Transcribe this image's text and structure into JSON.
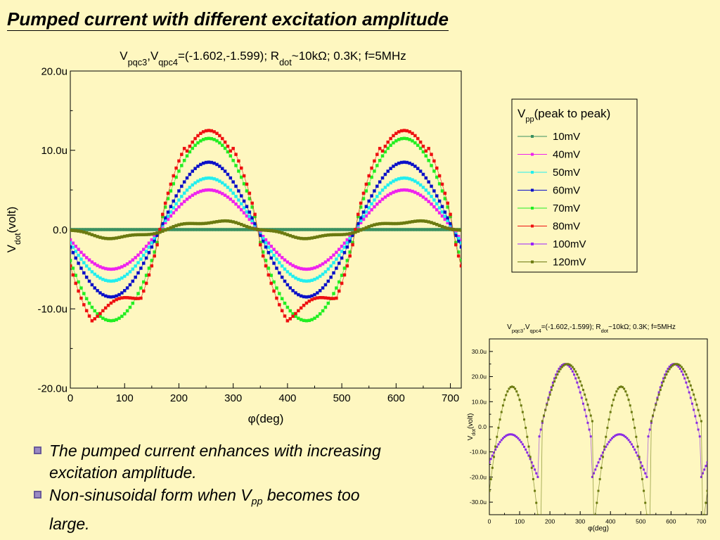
{
  "slide": {
    "title": "Pumped current with different excitation amplitude",
    "bullets": [
      {
        "text": "The pumped current enhances with increasing excitation amplitude."
      },
      {
        "pre": "Non-sinusoidal form when V",
        "sub": "pp",
        "post": " becomes too large."
      }
    ]
  },
  "chart_data": [
    {
      "id": "main",
      "type": "scatter",
      "title_parts": [
        {
          "t": "V"
        },
        {
          "t": "pqc3",
          "sub": true
        },
        {
          "t": ",V"
        },
        {
          "t": "qpc4",
          "sub": true
        },
        {
          "t": "=(-1.602,-1.599); R"
        },
        {
          "t": "dot",
          "sub": true
        },
        {
          "t": "~10kΩ; 0.3K; f=5MHz"
        }
      ],
      "xlabel": "φ(deg)",
      "ylabel_main": "V",
      "ylabel_sub": "dot",
      "ylabel_post": "(volt)",
      "xlim": [
        0,
        720
      ],
      "ylim": [
        -20,
        20
      ],
      "xticks": [
        0,
        100,
        200,
        300,
        400,
        500,
        600,
        700
      ],
      "xtick_labels": [
        "0",
        "100",
        "200",
        "300",
        "400",
        "500",
        "600",
        "700"
      ],
      "yticks": [
        -20,
        -10,
        0,
        10,
        20
      ],
      "ytick_labels": [
        "-20.0u",
        "-10.0u",
        "0.0",
        "10.0u",
        "20.0u"
      ],
      "legend": {
        "position": "right",
        "title_main": "V",
        "title_sub": "pp",
        "title_post": "(peak to peak)"
      },
      "series": [
        {
          "name": "10mV",
          "color": "#3a9060",
          "amp": 0.0
        },
        {
          "name": "40mV",
          "color": "#ee22ee",
          "amp": 5.0,
          "shape": "square"
        },
        {
          "name": "50mV",
          "color": "#22eeee",
          "amp": 6.5
        },
        {
          "name": "60mV",
          "color": "#0a10c8",
          "amp": 8.5
        },
        {
          "name": "70mV",
          "color": "#22ee22",
          "amp": 11.5,
          "sharp": true
        },
        {
          "name": "80mV",
          "color": "#ee1111",
          "amp": 13.5,
          "sharp": true,
          "humps": true
        },
        {
          "name": "100mV",
          "color": "#9922ff",
          "amp": 0
        },
        {
          "name": "120mV",
          "color": "#6b7a10",
          "amp": 1.0,
          "teal": true
        }
      ]
    },
    {
      "id": "inset",
      "type": "scatter",
      "title_parts": [
        {
          "t": "V"
        },
        {
          "t": "pqc3",
          "sub": true
        },
        {
          "t": ",V"
        },
        {
          "t": "qpc4",
          "sub": true
        },
        {
          "t": "=(-1.602,-1.599); R"
        },
        {
          "t": "dot",
          "sub": true
        },
        {
          "t": "~10kΩ; 0.3K; f=5MHz"
        }
      ],
      "xlabel": "φ(deg)",
      "ylabel_main": "V",
      "ylabel_sub": "dot",
      "ylabel_post": "(volt)",
      "xlim": [
        0,
        720
      ],
      "ylim": [
        -35,
        35
      ],
      "xticks": [
        0,
        100,
        200,
        300,
        400,
        500,
        600,
        700
      ],
      "xtick_labels": [
        "0",
        "100",
        "200",
        "300",
        "400",
        "500",
        "600",
        "700"
      ],
      "yticks": [
        -30,
        -20,
        -10,
        0,
        10,
        20,
        30
      ],
      "ytick_labels": [
        "-30.0u",
        "-20.0u",
        "-10.0u",
        "0.0",
        "10.0u",
        "20.0u",
        "30.0u"
      ],
      "series": [
        {
          "name": "100mV",
          "color": "#8a2be2"
        },
        {
          "name": "120mV",
          "color": "#6b7a10"
        }
      ]
    }
  ]
}
